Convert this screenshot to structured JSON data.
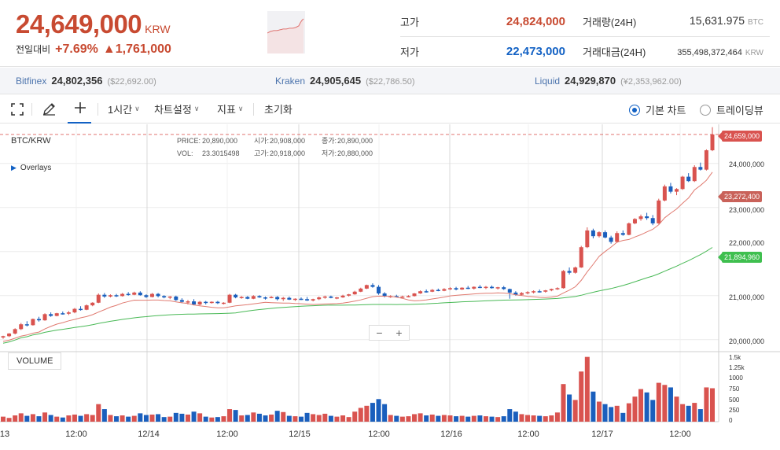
{
  "header": {
    "price": "24,649,000",
    "unit": "KRW",
    "change_label": "전일대비",
    "change_pct": "+7.69%",
    "change_amt": "▲1,761,000",
    "stats": {
      "high_label": "고가",
      "high": "24,824,000",
      "low_label": "저가",
      "low": "22,473,000",
      "vol_label": "거래량(24H)",
      "vol": "15,631.975",
      "vol_unit": "BTC",
      "amount_label": "거래대금(24H)",
      "amount": "355,498,372,464",
      "amount_unit": "KRW"
    }
  },
  "exchanges": [
    {
      "name": "Bitfinex",
      "price": "24,802,356",
      "sub": "($22,692.00)"
    },
    {
      "name": "Kraken",
      "price": "24,905,645",
      "sub": "($22,786.50)"
    },
    {
      "name": "Liquid",
      "price": "24,929,870",
      "sub": "(¥2,353,962.00)"
    }
  ],
  "toolbar": {
    "fullscreen_icon": "fullscreen-icon",
    "draw_icon": "pencil-icon",
    "crosshair_icon": "crosshair-icon",
    "interval": "1시간",
    "chart_settings": "차트설정",
    "indicators": "지표",
    "reset": "초기화",
    "basic_chart": "기본 차트",
    "tradingview": "트레이딩뷰"
  },
  "chart": {
    "pair": "BTC/KRW",
    "overlays": "Overlays",
    "ohlc": {
      "price_k": "PRICE:",
      "price_v": "20,890,000",
      "open_k": "시가:",
      "open_v": "20,908,000",
      "close_k": "종가:",
      "close_v": "20,890,000",
      "vol_k": "VOL:",
      "vol_v": "23.3015498",
      "high_k": "고가:",
      "high_v": "20,918,000",
      "low_k": "저가:",
      "low_v": "20,880,000"
    },
    "zoom_out": "−",
    "zoom_in": "+",
    "volume_label": "VOLUME",
    "tags": {
      "last": "24,659,000",
      "ma_short": "23,272,400",
      "ma_long": "21,894,960"
    },
    "y_labels": [
      "24,000,000",
      "23,000,000",
      "22,000,000",
      "21,000,000",
      "20,000,000"
    ],
    "vol_labels": [
      "1.5k",
      "1.25k",
      "1000",
      "750",
      "500",
      "250",
      "0"
    ],
    "x_labels": [
      "13",
      "12:00",
      "12/14",
      "12:00",
      "12/15",
      "12:00",
      "12/16",
      "12:00",
      "12/17",
      "12:00"
    ]
  },
  "chart_data": {
    "type": "candlestick",
    "ylim": [
      19800000,
      24800000
    ],
    "volume_ylim": [
      0,
      1600
    ],
    "colors": {
      "up": "#d9534f",
      "down": "#1a5fbd",
      "ma_short": "#e07a70",
      "ma_long": "#49b956"
    },
    "candles": [
      [
        20050000,
        20090000,
        20020000,
        20080000,
        120
      ],
      [
        20080000,
        20150000,
        20060000,
        20140000,
        90
      ],
      [
        20140000,
        20260000,
        20120000,
        20240000,
        150
      ],
      [
        20240000,
        20380000,
        20220000,
        20350000,
        200
      ],
      [
        20350000,
        20420000,
        20300000,
        20330000,
        140
      ],
      [
        20330000,
        20480000,
        20320000,
        20470000,
        180
      ],
      [
        20470000,
        20520000,
        20410000,
        20440000,
        130
      ],
      [
        20440000,
        20600000,
        20430000,
        20580000,
        220
      ],
      [
        20580000,
        20620000,
        20520000,
        20540000,
        160
      ],
      [
        20540000,
        20610000,
        20530000,
        20600000,
        120
      ],
      [
        20600000,
        20640000,
        20570000,
        20590000,
        100
      ],
      [
        20590000,
        20650000,
        20560000,
        20620000,
        150
      ],
      [
        20620000,
        20720000,
        20600000,
        20700000,
        170
      ],
      [
        20700000,
        20760000,
        20660000,
        20680000,
        140
      ],
      [
        20680000,
        20800000,
        20670000,
        20780000,
        180
      ],
      [
        20780000,
        20850000,
        20760000,
        20840000,
        160
      ],
      [
        20840000,
        21050000,
        20830000,
        21020000,
        420
      ],
      [
        21020000,
        21060000,
        20950000,
        20980000,
        300
      ],
      [
        20980000,
        21030000,
        20960000,
        21010000,
        160
      ],
      [
        21010000,
        21040000,
        20970000,
        20990000,
        130
      ],
      [
        20990000,
        21060000,
        20980000,
        21040000,
        150
      ],
      [
        21040000,
        21080000,
        21000000,
        21020000,
        120
      ],
      [
        21020000,
        21090000,
        21010000,
        21070000,
        140
      ],
      [
        21070000,
        21100000,
        21000000,
        21010000,
        200
      ],
      [
        21010000,
        21030000,
        20950000,
        20970000,
        160
      ],
      [
        20970000,
        21060000,
        20960000,
        21040000,
        170
      ],
      [
        21040000,
        21060000,
        20960000,
        20990000,
        180
      ],
      [
        20990000,
        21010000,
        20940000,
        20960000,
        110
      ],
      [
        20960000,
        20990000,
        20920000,
        20980000,
        120
      ],
      [
        20980000,
        21000000,
        20880000,
        20900000,
        210
      ],
      [
        20900000,
        20940000,
        20830000,
        20860000,
        190
      ],
      [
        20860000,
        20900000,
        20800000,
        20870000,
        170
      ],
      [
        20870000,
        20920000,
        20780000,
        20800000,
        240
      ],
      [
        20800000,
        20880000,
        20780000,
        20860000,
        200
      ],
      [
        20860000,
        20880000,
        20800000,
        20840000,
        120
      ],
      [
        20840000,
        20870000,
        20820000,
        20860000,
        100
      ],
      [
        20860000,
        20880000,
        20810000,
        20830000,
        110
      ],
      [
        20830000,
        20850000,
        20800000,
        20840000,
        130
      ],
      [
        20840000,
        21040000,
        20830000,
        21020000,
        300
      ],
      [
        21020000,
        21040000,
        20940000,
        20960000,
        280
      ],
      [
        20960000,
        20990000,
        20930000,
        20970000,
        150
      ],
      [
        20970000,
        20990000,
        20920000,
        20930000,
        160
      ],
      [
        20930000,
        21010000,
        20920000,
        20990000,
        220
      ],
      [
        20990000,
        21010000,
        20950000,
        20960000,
        190
      ],
      [
        20960000,
        20980000,
        20910000,
        20950000,
        150
      ],
      [
        20950000,
        20990000,
        20940000,
        20970000,
        170
      ],
      [
        20970000,
        20990000,
        20890000,
        20920000,
        260
      ],
      [
        20920000,
        20970000,
        20880000,
        20950000,
        230
      ],
      [
        20950000,
        20980000,
        20900000,
        20910000,
        140
      ],
      [
        20910000,
        20940000,
        20880000,
        20930000,
        130
      ],
      [
        20930000,
        20960000,
        20900000,
        20920000,
        120
      ],
      [
        20920000,
        20970000,
        20880000,
        20890000,
        210
      ],
      [
        20890000,
        20930000,
        20870000,
        20920000,
        180
      ],
      [
        20920000,
        20980000,
        20900000,
        20960000,
        160
      ],
      [
        20960000,
        21000000,
        20930000,
        20980000,
        190
      ],
      [
        20980000,
        21000000,
        20940000,
        20950000,
        140
      ],
      [
        20950000,
        20970000,
        20920000,
        20960000,
        120
      ],
      [
        20960000,
        21020000,
        20950000,
        21000000,
        150
      ],
      [
        21000000,
        21040000,
        20980000,
        21030000,
        110
      ],
      [
        21030000,
        21110000,
        21020000,
        21090000,
        240
      ],
      [
        21090000,
        21180000,
        21080000,
        21160000,
        330
      ],
      [
        21160000,
        21250000,
        21150000,
        21240000,
        380
      ],
      [
        21240000,
        21280000,
        21180000,
        21200000,
        450
      ],
      [
        21200000,
        21240000,
        21020000,
        21050000,
        540
      ],
      [
        21050000,
        21080000,
        20960000,
        20980000,
        420
      ],
      [
        20980000,
        21010000,
        20950000,
        20990000,
        160
      ],
      [
        20990000,
        21020000,
        20960000,
        20970000,
        140
      ],
      [
        20970000,
        21000000,
        20950000,
        20980000,
        120
      ],
      [
        20980000,
        21010000,
        20960000,
        20990000,
        130
      ],
      [
        20990000,
        21060000,
        20980000,
        21050000,
        180
      ],
      [
        21050000,
        21120000,
        21040000,
        21100000,
        200
      ],
      [
        21100000,
        21140000,
        21070000,
        21090000,
        150
      ],
      [
        21090000,
        21150000,
        21080000,
        21130000,
        170
      ],
      [
        21130000,
        21160000,
        21100000,
        21110000,
        140
      ],
      [
        21110000,
        21170000,
        21100000,
        21150000,
        160
      ],
      [
        21150000,
        21190000,
        21130000,
        21170000,
        150
      ],
      [
        21170000,
        21200000,
        21120000,
        21140000,
        130
      ],
      [
        21140000,
        21190000,
        21130000,
        21180000,
        140
      ],
      [
        21180000,
        21220000,
        21150000,
        21160000,
        120
      ],
      [
        21160000,
        21210000,
        21140000,
        21200000,
        140
      ],
      [
        21200000,
        21240000,
        21170000,
        21180000,
        150
      ],
      [
        21180000,
        21220000,
        21150000,
        21200000,
        130
      ],
      [
        21200000,
        21230000,
        21160000,
        21170000,
        120
      ],
      [
        21170000,
        21200000,
        21140000,
        21190000,
        110
      ],
      [
        21190000,
        21220000,
        21130000,
        21150000,
        130
      ],
      [
        21150000,
        21160000,
        20930000,
        21070000,
        300
      ],
      [
        21070000,
        21100000,
        21000000,
        21020000,
        240
      ],
      [
        21020000,
        21080000,
        21000000,
        21060000,
        180
      ],
      [
        21060000,
        21100000,
        21030000,
        21080000,
        160
      ],
      [
        21080000,
        21120000,
        21050000,
        21100000,
        150
      ],
      [
        21100000,
        21140000,
        21070000,
        21090000,
        140
      ],
      [
        21090000,
        21130000,
        21070000,
        21120000,
        130
      ],
      [
        21120000,
        21160000,
        21100000,
        21150000,
        150
      ],
      [
        21150000,
        21190000,
        21130000,
        21170000,
        220
      ],
      [
        21170000,
        21580000,
        21160000,
        21560000,
        900
      ],
      [
        21560000,
        21640000,
        21480000,
        21520000,
        650
      ],
      [
        21520000,
        21660000,
        21500000,
        21640000,
        520
      ],
      [
        21640000,
        22130000,
        21630000,
        22100000,
        1200
      ],
      [
        22100000,
        22550000,
        22080000,
        22480000,
        1550
      ],
      [
        22480000,
        22520000,
        22300000,
        22350000,
        720
      ],
      [
        22350000,
        22460000,
        22320000,
        22440000,
        480
      ],
      [
        22440000,
        22480000,
        22300000,
        22320000,
        420
      ],
      [
        22320000,
        22360000,
        22180000,
        22220000,
        350
      ],
      [
        22220000,
        22460000,
        22200000,
        22420000,
        380
      ],
      [
        22420000,
        22480000,
        22360000,
        22380000,
        210
      ],
      [
        22380000,
        22660000,
        22370000,
        22640000,
        440
      ],
      [
        22640000,
        22760000,
        22620000,
        22740000,
        600
      ],
      [
        22740000,
        22840000,
        22700000,
        22800000,
        780
      ],
      [
        22800000,
        22880000,
        22720000,
        22760000,
        700
      ],
      [
        22760000,
        22830000,
        22600000,
        22640000,
        520
      ],
      [
        22640000,
        23200000,
        22630000,
        23160000,
        930
      ],
      [
        23160000,
        23520000,
        23140000,
        23480000,
        880
      ],
      [
        23480000,
        23560000,
        23320000,
        23360000,
        820
      ],
      [
        23360000,
        23440000,
        23280000,
        23420000,
        600
      ],
      [
        23420000,
        23720000,
        23400000,
        23700000,
        420
      ],
      [
        23700000,
        23780000,
        23580000,
        23600000,
        380
      ],
      [
        23600000,
        23960000,
        23580000,
        23920000,
        450
      ],
      [
        23920000,
        24020000,
        23840000,
        23860000,
        300
      ],
      [
        23860000,
        24320000,
        23840000,
        24300000,
        820
      ],
      [
        24300000,
        24824000,
        24280000,
        24659000,
        800
      ]
    ]
  }
}
